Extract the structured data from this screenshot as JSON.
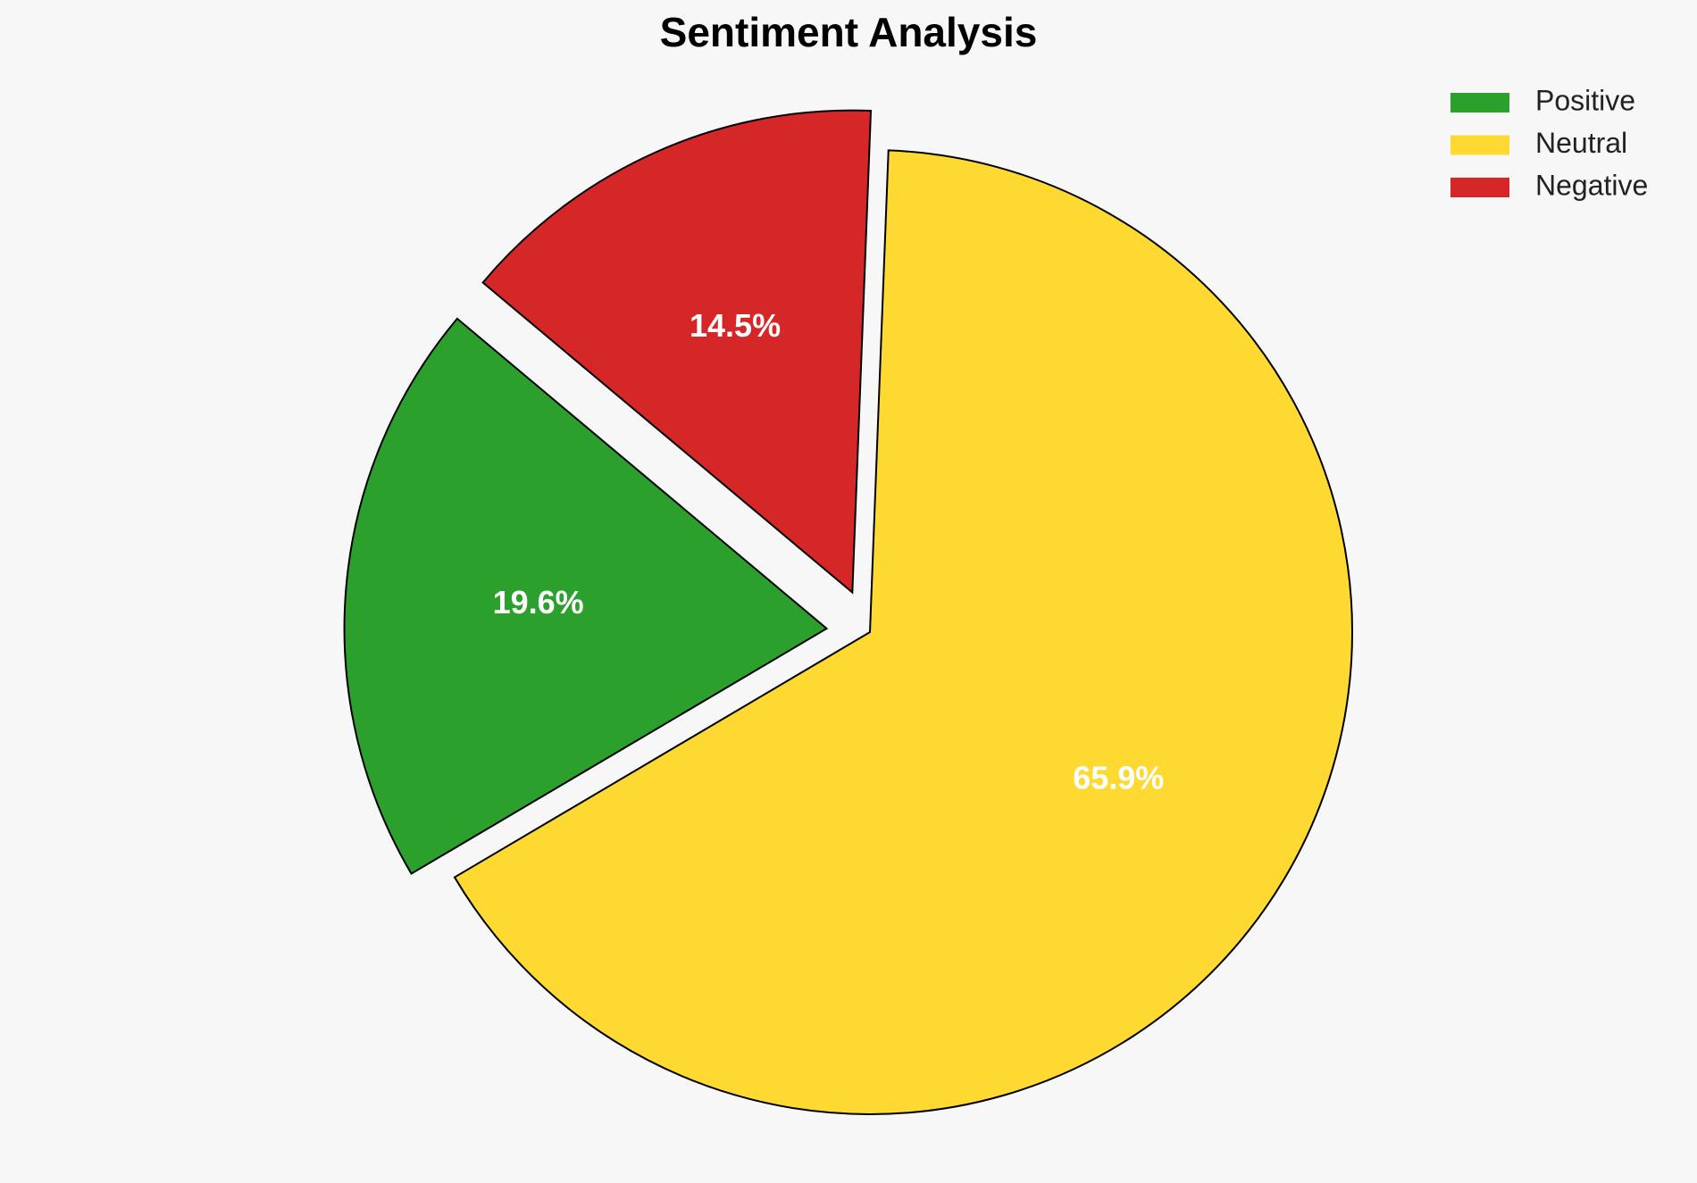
{
  "chart_data": {
    "type": "pie",
    "title": "Sentiment Analysis",
    "categories": [
      "Positive",
      "Neutral",
      "Negative"
    ],
    "values": [
      19.6,
      65.9,
      14.5
    ],
    "value_labels": [
      "19.6%",
      "65.9%",
      "14.5%"
    ],
    "colors": [
      "#2ca02c",
      "#fdd931",
      "#d62728"
    ],
    "explode": [
      true,
      false,
      true
    ],
    "legend": "upper right"
  }
}
